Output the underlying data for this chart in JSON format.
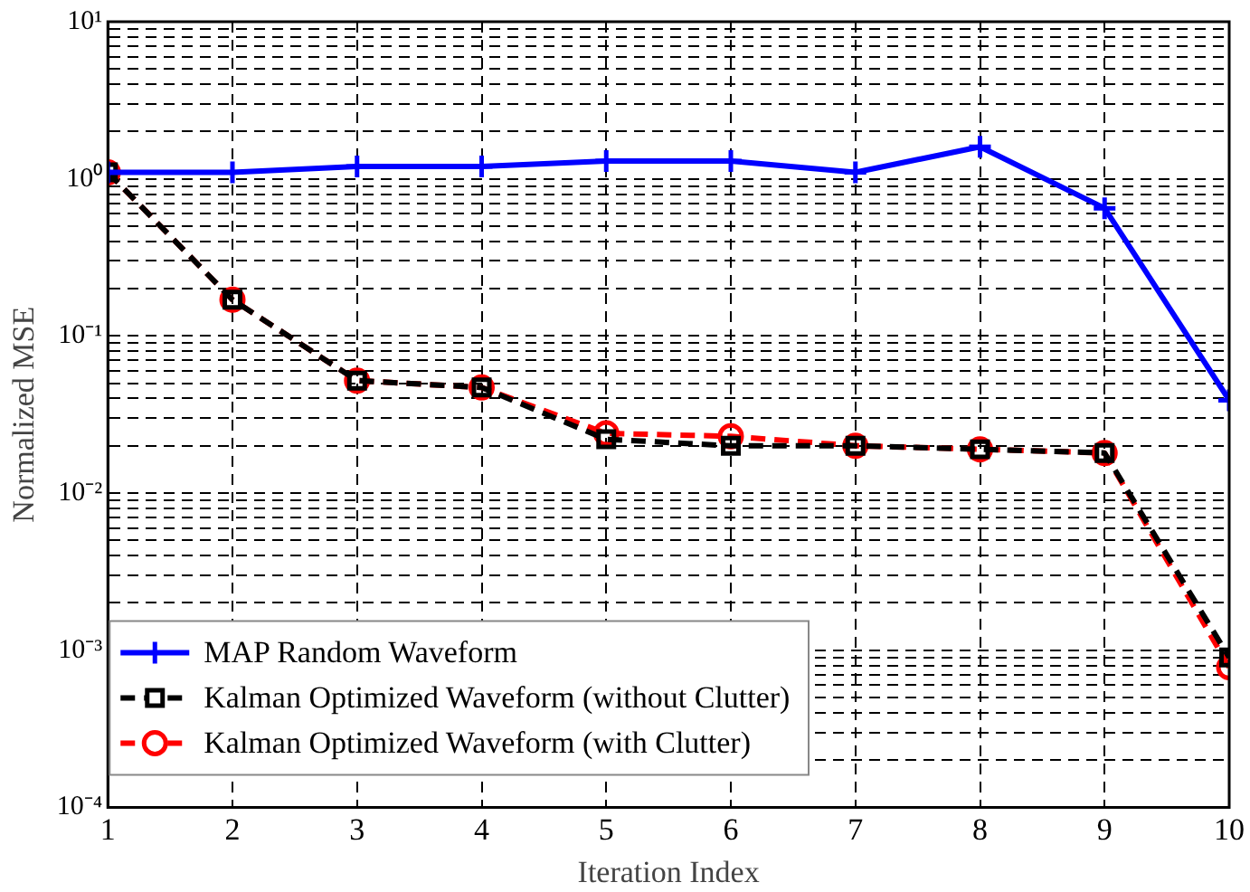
{
  "chart_data": {
    "type": "line",
    "xlabel": "Iteration Index",
    "ylabel": "Normalized MSE",
    "log": "y",
    "grid": true,
    "legend": "bottom left",
    "x": [
      1,
      2,
      3,
      4,
      5,
      6,
      7,
      8,
      9,
      10
    ],
    "xlim": [
      1,
      10
    ],
    "xticks": [
      1,
      2,
      3,
      4,
      5,
      6,
      7,
      8,
      9,
      10
    ],
    "ylim": [
      0.0001,
      10
    ],
    "yticks": [
      {
        "value": 0.0001,
        "label": "10⁻⁴"
      },
      {
        "value": 0.0002,
        "label": null
      },
      {
        "value": 0.0003,
        "label": null
      },
      {
        "value": 0.0004,
        "label": null
      },
      {
        "value": 0.0005,
        "label": null
      },
      {
        "value": 0.0006,
        "label": null
      },
      {
        "value": 0.0007,
        "label": null
      },
      {
        "value": 0.0008,
        "label": null
      },
      {
        "value": 0.0009,
        "label": null
      },
      {
        "value": 0.001,
        "label": "10⁻³"
      },
      {
        "value": 0.002,
        "label": null
      },
      {
        "value": 0.003,
        "label": null
      },
      {
        "value": 0.004,
        "label": null
      },
      {
        "value": 0.005,
        "label": null
      },
      {
        "value": 0.006,
        "label": null
      },
      {
        "value": 0.007,
        "label": null
      },
      {
        "value": 0.008,
        "label": null
      },
      {
        "value": 0.009,
        "label": null
      },
      {
        "value": 0.01,
        "label": "10⁻²"
      },
      {
        "value": 0.02,
        "label": null
      },
      {
        "value": 0.03,
        "label": null
      },
      {
        "value": 0.04,
        "label": null
      },
      {
        "value": 0.05,
        "label": null
      },
      {
        "value": 0.06,
        "label": null
      },
      {
        "value": 0.07,
        "label": null
      },
      {
        "value": 0.08,
        "label": null
      },
      {
        "value": 0.09,
        "label": null
      },
      {
        "value": 0.1,
        "label": "10⁻¹"
      },
      {
        "value": 0.2,
        "label": null
      },
      {
        "value": 0.3,
        "label": null
      },
      {
        "value": 0.4,
        "label": null
      },
      {
        "value": 0.5,
        "label": null
      },
      {
        "value": 0.6,
        "label": null
      },
      {
        "value": 0.7,
        "label": null
      },
      {
        "value": 0.8,
        "label": null
      },
      {
        "value": 0.9,
        "label": null
      },
      {
        "value": 1,
        "label": "10⁰"
      },
      {
        "value": 2,
        "label": null
      },
      {
        "value": 3,
        "label": null
      },
      {
        "value": 4,
        "label": null
      },
      {
        "value": 5,
        "label": null
      },
      {
        "value": 6,
        "label": null
      },
      {
        "value": 7,
        "label": null
      },
      {
        "value": 8,
        "label": null
      },
      {
        "value": 9,
        "label": null
      },
      {
        "value": 10,
        "label": "10¹"
      }
    ],
    "series": [
      {
        "name": "MAP Random Waveform",
        "color": "#0000ff",
        "marker": "cross",
        "line_style": "solid",
        "values": [
          1.1,
          1.1,
          1.2,
          1.2,
          1.3,
          1.3,
          1.1,
          1.6,
          0.65,
          0.039
        ]
      },
      {
        "name": "Kalman Optimized Waveform (without Clutter)",
        "color": "#000000",
        "marker": "square",
        "line_style": "dashed",
        "values": [
          1.1,
          0.17,
          0.052,
          0.047,
          0.022,
          0.02,
          0.02,
          0.019,
          0.018,
          0.0009
        ]
      },
      {
        "name": "Kalman Optimized Waveform (with Clutter)",
        "color": "#ff0000",
        "marker": "circle",
        "line_style": "dashed",
        "values": [
          1.1,
          0.17,
          0.052,
          0.047,
          0.024,
          0.023,
          0.02,
          0.019,
          0.018,
          0.00078
        ]
      }
    ]
  }
}
